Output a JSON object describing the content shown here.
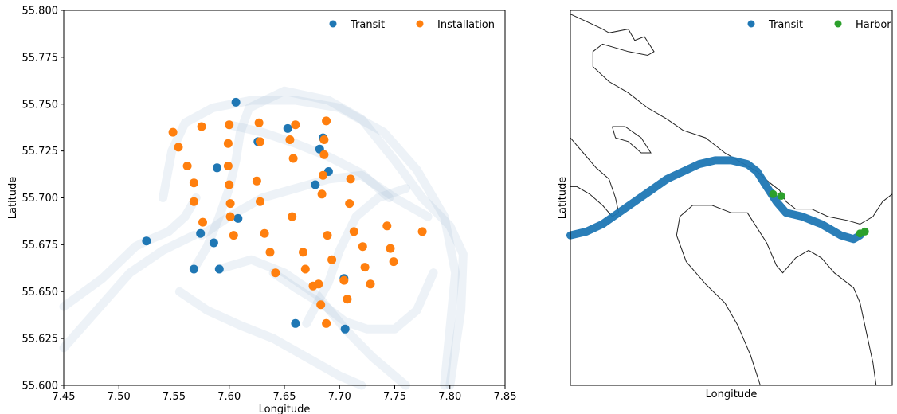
{
  "chart_data": [
    {
      "type": "scatter",
      "xlabel": "Longitude",
      "ylabel": "Latitude",
      "xlim": [
        7.45,
        7.85
      ],
      "ylim": [
        55.6,
        55.8
      ],
      "x_ticks": [
        "7.45",
        "7.50",
        "7.55",
        "7.60",
        "7.65",
        "7.70",
        "7.75",
        "7.80",
        "7.85"
      ],
      "y_ticks": [
        "55.600",
        "55.625",
        "55.650",
        "55.675",
        "55.700",
        "55.725",
        "55.750",
        "55.775",
        "55.800"
      ],
      "legend_position": "top-right",
      "series": [
        {
          "name": "Transit",
          "color": "#1f77b4",
          "points": [
            [
              7.525,
              55.677
            ],
            [
              7.568,
              55.662
            ],
            [
              7.574,
              55.681
            ],
            [
              7.586,
              55.676
            ],
            [
              7.591,
              55.662
            ],
            [
              7.589,
              55.716
            ],
            [
              7.608,
              55.689
            ],
            [
              7.606,
              55.751
            ],
            [
              7.626,
              55.73
            ],
            [
              7.653,
              55.737
            ],
            [
              7.678,
              55.707
            ],
            [
              7.682,
              55.726
            ],
            [
              7.685,
              55.732
            ],
            [
              7.69,
              55.714
            ],
            [
              7.66,
              55.633
            ],
            [
              7.705,
              55.63
            ],
            [
              7.704,
              55.657
            ]
          ]
        },
        {
          "name": "Installation",
          "color": "#ff7f0e",
          "points": [
            [
              7.549,
              55.735
            ],
            [
              7.554,
              55.727
            ],
            [
              7.562,
              55.717
            ],
            [
              7.568,
              55.708
            ],
            [
              7.568,
              55.698
            ],
            [
              7.576,
              55.687
            ],
            [
              7.575,
              55.738
            ],
            [
              7.6,
              55.739
            ],
            [
              7.599,
              55.729
            ],
            [
              7.599,
              55.717
            ],
            [
              7.6,
              55.707
            ],
            [
              7.601,
              55.697
            ],
            [
              7.601,
              55.69
            ],
            [
              7.604,
              55.68
            ],
            [
              7.627,
              55.74
            ],
            [
              7.628,
              55.73
            ],
            [
              7.625,
              55.709
            ],
            [
              7.628,
              55.698
            ],
            [
              7.632,
              55.681
            ],
            [
              7.637,
              55.671
            ],
            [
              7.642,
              55.66
            ],
            [
              7.657,
              55.69
            ],
            [
              7.658,
              55.721
            ],
            [
              7.655,
              55.731
            ],
            [
              7.66,
              55.739
            ],
            [
              7.667,
              55.671
            ],
            [
              7.669,
              55.662
            ],
            [
              7.676,
              55.653
            ],
            [
              7.681,
              55.654
            ],
            [
              7.683,
              55.643
            ],
            [
              7.684,
              55.702
            ],
            [
              7.685,
              55.712
            ],
            [
              7.686,
              55.723
            ],
            [
              7.686,
              55.731
            ],
            [
              7.688,
              55.741
            ],
            [
              7.688,
              55.633
            ],
            [
              7.689,
              55.68
            ],
            [
              7.693,
              55.667
            ],
            [
              7.704,
              55.656
            ],
            [
              7.707,
              55.646
            ],
            [
              7.709,
              55.697
            ],
            [
              7.71,
              55.71
            ],
            [
              7.713,
              55.682
            ],
            [
              7.721,
              55.674
            ],
            [
              7.723,
              55.663
            ],
            [
              7.728,
              55.654
            ],
            [
              7.743,
              55.685
            ],
            [
              7.746,
              55.673
            ],
            [
              7.749,
              55.666
            ],
            [
              7.775,
              55.682
            ]
          ]
        },
        {
          "name": "track",
          "color": "#9ab5d4",
          "tracks": [
            [
              [
                7.45,
                55.642
              ],
              [
                7.485,
                55.657
              ],
              [
                7.515,
                55.674
              ],
              [
                7.525,
                55.677
              ],
              [
                7.545,
                55.682
              ],
              [
                7.56,
                55.69
              ],
              [
                7.57,
                55.7
              ]
            ],
            [
              [
                7.568,
                55.662
              ],
              [
                7.58,
                55.674
              ],
              [
                7.591,
                55.69
              ],
              [
                7.6,
                55.705
              ],
              [
                7.606,
                55.72
              ],
              [
                7.61,
                55.735
              ],
              [
                7.618,
                55.748
              ],
              [
                7.65,
                55.757
              ],
              [
                7.69,
                55.752
              ],
              [
                7.72,
                55.742
              ],
              [
                7.75,
                55.72
              ],
              [
                7.775,
                55.7
              ],
              [
                7.8,
                55.685
              ],
              [
                7.812,
                55.67
              ],
              [
                7.81,
                55.64
              ],
              [
                7.8,
                55.6
              ]
            ],
            [
              [
                7.54,
                55.7
              ],
              [
                7.548,
                55.725
              ],
              [
                7.56,
                55.74
              ],
              [
                7.585,
                55.748
              ],
              [
                7.62,
                55.752
              ],
              [
                7.66,
                55.752
              ],
              [
                7.7,
                55.748
              ],
              [
                7.74,
                55.735
              ],
              [
                7.77,
                55.715
              ],
              [
                7.795,
                55.69
              ],
              [
                7.805,
                55.66
              ],
              [
                7.795,
                55.6
              ]
            ],
            [
              [
                7.591,
                55.662
              ],
              [
                7.62,
                55.667
              ],
              [
                7.65,
                55.66
              ],
              [
                7.68,
                55.648
              ],
              [
                7.705,
                55.63
              ],
              [
                7.73,
                55.615
              ],
              [
                7.76,
                55.6
              ]
            ],
            [
              [
                7.575,
                55.68
              ],
              [
                7.6,
                55.69
              ],
              [
                7.63,
                55.7
              ],
              [
                7.66,
                55.705
              ],
              [
                7.69,
                55.71
              ],
              [
                7.72,
                55.712
              ],
              [
                7.75,
                55.7
              ],
              [
                7.78,
                55.69
              ]
            ],
            [
              [
                7.555,
                55.65
              ],
              [
                7.58,
                55.64
              ],
              [
                7.61,
                55.632
              ],
              [
                7.64,
                55.625
              ],
              [
                7.67,
                55.615
              ],
              [
                7.7,
                55.605
              ],
              [
                7.72,
                55.6
              ]
            ],
            [
              [
                7.6,
                55.739
              ],
              [
                7.63,
                55.735
              ],
              [
                7.66,
                55.729
              ],
              [
                7.69,
                55.722
              ],
              [
                7.72,
                55.713
              ],
              [
                7.745,
                55.7
              ]
            ],
            [
              [
                7.64,
                55.66
              ],
              [
                7.66,
                55.652
              ],
              [
                7.685,
                55.643
              ],
              [
                7.705,
                55.634
              ],
              [
                7.725,
                55.63
              ],
              [
                7.75,
                55.63
              ],
              [
                7.77,
                55.64
              ],
              [
                7.785,
                55.66
              ]
            ],
            [
              [
                7.67,
                55.633
              ],
              [
                7.69,
                55.655
              ],
              [
                7.7,
                55.672
              ],
              [
                7.715,
                55.69
              ],
              [
                7.735,
                55.7
              ],
              [
                7.76,
                55.705
              ]
            ],
            [
              [
                7.45,
                55.62
              ],
              [
                7.48,
                55.64
              ],
              [
                7.51,
                55.66
              ],
              [
                7.54,
                55.672
              ],
              [
                7.568,
                55.68
              ]
            ]
          ]
        }
      ]
    },
    {
      "type": "scatter",
      "xlabel": "Longitude",
      "ylabel": "Latitude",
      "xlim": [
        0,
        1
      ],
      "ylim": [
        0,
        1
      ],
      "legend_position": "top-right",
      "series": [
        {
          "name": "Transit",
          "color": "#1f77b4",
          "track": [
            [
              0.0,
              0.4
            ],
            [
              0.05,
              0.41
            ],
            [
              0.1,
              0.43
            ],
            [
              0.15,
              0.46
            ],
            [
              0.2,
              0.49
            ],
            [
              0.25,
              0.52
            ],
            [
              0.3,
              0.55
            ],
            [
              0.35,
              0.57
            ],
            [
              0.4,
              0.59
            ],
            [
              0.45,
              0.6
            ],
            [
              0.5,
              0.6
            ],
            [
              0.55,
              0.59
            ],
            [
              0.58,
              0.57
            ],
            [
              0.61,
              0.53
            ],
            [
              0.64,
              0.49
            ],
            [
              0.67,
              0.46
            ],
            [
              0.72,
              0.45
            ],
            [
              0.78,
              0.43
            ],
            [
              0.84,
              0.4
            ],
            [
              0.88,
              0.39
            ],
            [
              0.9,
              0.4
            ]
          ]
        },
        {
          "name": "Harbor",
          "color": "#2ca02c",
          "points": [
            [
              0.63,
              0.51
            ],
            [
              0.655,
              0.505
            ],
            [
              0.9,
              0.405
            ],
            [
              0.915,
              0.41
            ]
          ]
        }
      ],
      "coastlines": [
        [
          [
            0.0,
            0.99
          ],
          [
            0.05,
            0.97
          ],
          [
            0.1,
            0.95
          ],
          [
            0.12,
            0.94
          ],
          [
            0.18,
            0.95
          ],
          [
            0.2,
            0.92
          ],
          [
            0.23,
            0.93
          ],
          [
            0.26,
            0.89
          ],
          [
            0.24,
            0.88
          ],
          [
            0.18,
            0.89
          ],
          [
            0.1,
            0.91
          ],
          [
            0.07,
            0.89
          ],
          [
            0.07,
            0.85
          ],
          [
            0.12,
            0.81
          ],
          [
            0.18,
            0.78
          ],
          [
            0.24,
            0.74
          ],
          [
            0.3,
            0.71
          ],
          [
            0.35,
            0.68
          ],
          [
            0.42,
            0.66
          ],
          [
            0.48,
            0.62
          ],
          [
            0.52,
            0.6
          ],
          [
            0.58,
            0.57
          ],
          [
            0.62,
            0.54
          ],
          [
            0.65,
            0.52
          ],
          [
            0.67,
            0.49
          ],
          [
            0.7,
            0.47
          ],
          [
            0.75,
            0.47
          ],
          [
            0.8,
            0.45
          ],
          [
            0.86,
            0.44
          ],
          [
            0.9,
            0.43
          ],
          [
            0.94,
            0.45
          ],
          [
            0.97,
            0.49
          ],
          [
            1.0,
            0.51
          ]
        ],
        [
          [
            0.0,
            0.66
          ],
          [
            0.04,
            0.62
          ],
          [
            0.08,
            0.58
          ],
          [
            0.12,
            0.55
          ],
          [
            0.14,
            0.5
          ],
          [
            0.15,
            0.46
          ],
          [
            0.13,
            0.45
          ],
          [
            0.1,
            0.48
          ],
          [
            0.06,
            0.51
          ],
          [
            0.02,
            0.53
          ],
          [
            0.0,
            0.53
          ]
        ],
        [
          [
            0.13,
            0.69
          ],
          [
            0.17,
            0.69
          ],
          [
            0.22,
            0.66
          ],
          [
            0.25,
            0.62
          ],
          [
            0.22,
            0.62
          ],
          [
            0.18,
            0.65
          ],
          [
            0.14,
            0.66
          ],
          [
            0.13,
            0.69
          ]
        ],
        [
          [
            0.34,
            0.45
          ],
          [
            0.38,
            0.48
          ],
          [
            0.44,
            0.48
          ],
          [
            0.5,
            0.46
          ],
          [
            0.55,
            0.46
          ],
          [
            0.58,
            0.42
          ],
          [
            0.61,
            0.38
          ],
          [
            0.64,
            0.32
          ],
          [
            0.66,
            0.3
          ],
          [
            0.7,
            0.34
          ],
          [
            0.74,
            0.36
          ],
          [
            0.78,
            0.34
          ],
          [
            0.82,
            0.3
          ],
          [
            0.88,
            0.26
          ],
          [
            0.9,
            0.22
          ],
          [
            0.92,
            0.14
          ],
          [
            0.94,
            0.06
          ],
          [
            0.95,
            0.0
          ]
        ],
        [
          [
            0.34,
            0.45
          ],
          [
            0.33,
            0.4
          ],
          [
            0.36,
            0.33
          ],
          [
            0.42,
            0.27
          ],
          [
            0.48,
            0.22
          ],
          [
            0.52,
            0.16
          ],
          [
            0.56,
            0.08
          ],
          [
            0.59,
            0.0
          ]
        ]
      ]
    }
  ]
}
